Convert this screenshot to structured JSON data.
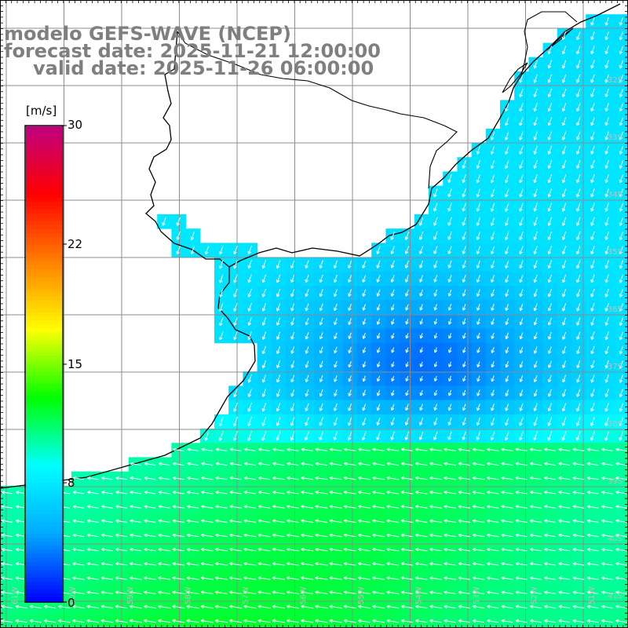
{
  "title": {
    "model": "modelo GEFS-WAVE (NCEP)",
    "forecast": "forecast date: 2025-11-21 12:00:00",
    "valid": "valid date: 2025-11-26 06:00:00"
  },
  "colorbar": {
    "units": "[m/s]",
    "ticks": [
      "30",
      "22",
      "15",
      "8",
      "0"
    ],
    "colors": [
      "#0000ff",
      "#00aaff",
      "#00ffff",
      "#00ff00",
      "#ffff00",
      "#ff8000",
      "#ff0000",
      "#c00080"
    ]
  },
  "map": {
    "lat_labels": [
      "32S",
      "33S",
      "34S",
      "35S",
      "36S",
      "37S",
      "38S",
      "39S",
      "40S",
      "41S"
    ],
    "lon_labels": [
      "61W",
      "60W",
      "59W",
      "58W",
      "57W",
      "56W",
      "55W",
      "54W",
      "53W",
      "52W",
      "51W"
    ],
    "land_color": "#ffffff",
    "coast_color": "#000000",
    "grid_color": "#808080"
  }
}
